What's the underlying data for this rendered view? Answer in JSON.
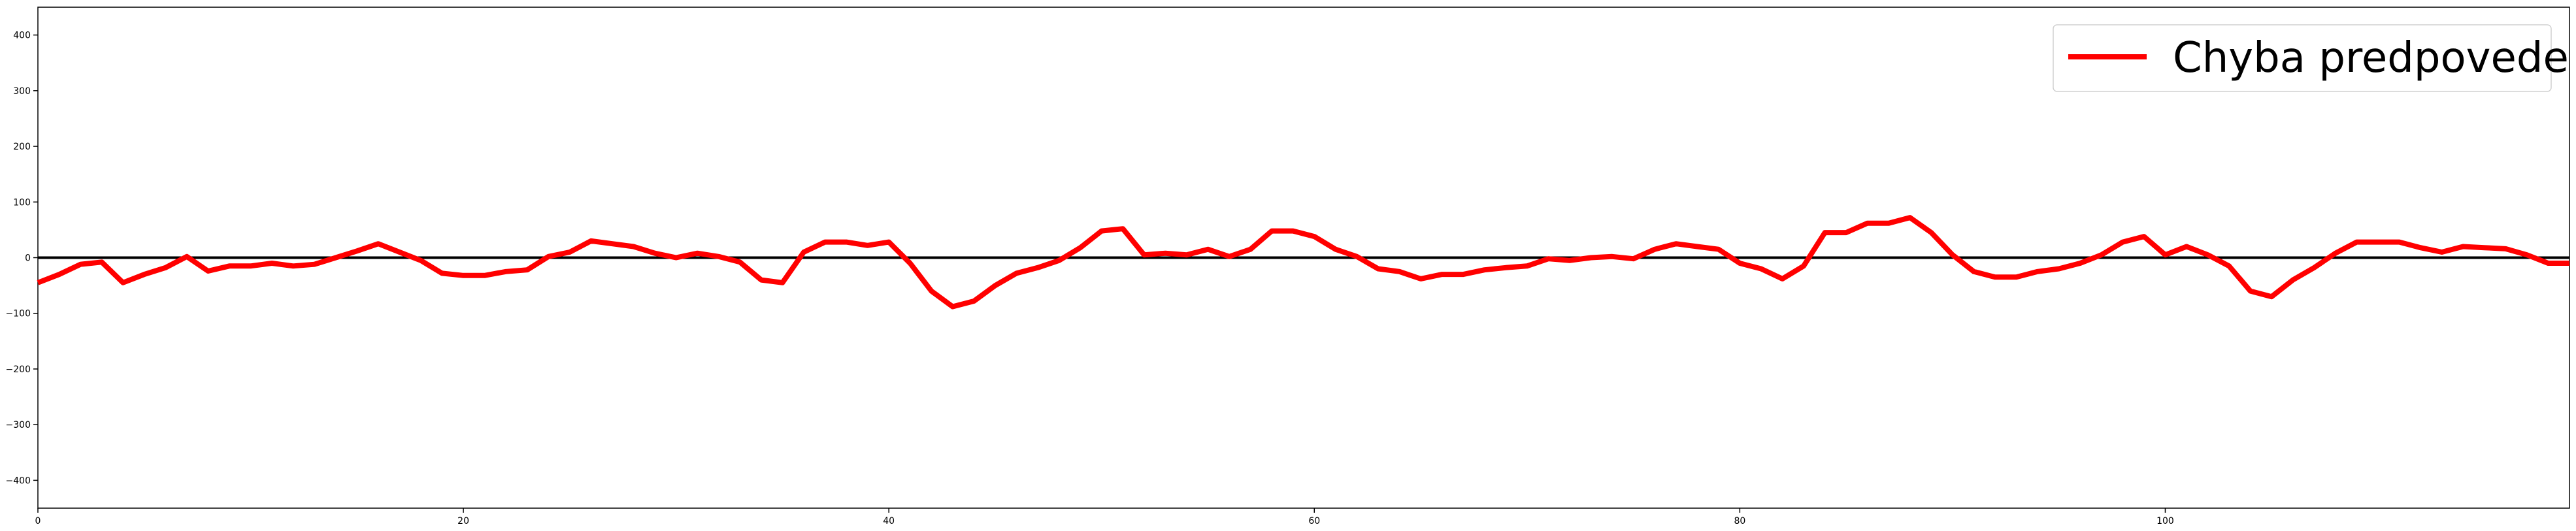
{
  "chart_data": {
    "type": "line",
    "title": "",
    "xlabel": "",
    "ylabel": "",
    "xlim": [
      0,
      119
    ],
    "ylim": [
      -450,
      450
    ],
    "grid": false,
    "legend_placement": "upper right",
    "x_ticks": [
      0,
      20,
      40,
      60,
      80,
      100
    ],
    "y_ticks": [
      -400,
      -300,
      -200,
      -100,
      0,
      100,
      200,
      300,
      400
    ],
    "x_tick_labels": [
      "0",
      "20",
      "40",
      "60",
      "80",
      "100"
    ],
    "y_tick_labels": [
      "−400",
      "−300",
      "−200",
      "−100",
      "0",
      "100",
      "200",
      "300",
      "400"
    ],
    "series": [
      {
        "name": "Chyba predpovede",
        "color": "#ff0000",
        "values": [
          -45,
          -30,
          -12,
          -8,
          -45,
          -30,
          -18,
          2,
          -24,
          -15,
          -15,
          -10,
          -15,
          -12,
          0,
          12,
          25,
          10,
          -5,
          -28,
          -32,
          -32,
          -25,
          -22,
          2,
          10,
          30,
          25,
          20,
          8,
          0,
          8,
          2,
          -8,
          -40,
          -45,
          10,
          28,
          28,
          22,
          28,
          -10,
          -60,
          -88,
          -78,
          -50,
          -28,
          -18,
          -5,
          18,
          48,
          52,
          5,
          8,
          5,
          15,
          2,
          15,
          48,
          48,
          38,
          15,
          2,
          -20,
          -25,
          -38,
          -30,
          -30,
          -22,
          -18,
          -15,
          -2,
          -5,
          0,
          2,
          -2,
          15,
          25,
          20,
          15,
          -10,
          -20,
          -38,
          -15,
          45,
          45,
          62,
          62,
          72,
          45,
          5,
          -25,
          -35,
          -35,
          -25,
          -20,
          -10,
          5,
          28,
          38,
          5,
          20,
          5,
          -15,
          -60,
          -70,
          -40,
          -18,
          8,
          28,
          28,
          28,
          18,
          10,
          20,
          18,
          16,
          5,
          -10,
          -10
        ]
      }
    ],
    "baseline": {
      "y": 0,
      "color": "#000000"
    }
  }
}
